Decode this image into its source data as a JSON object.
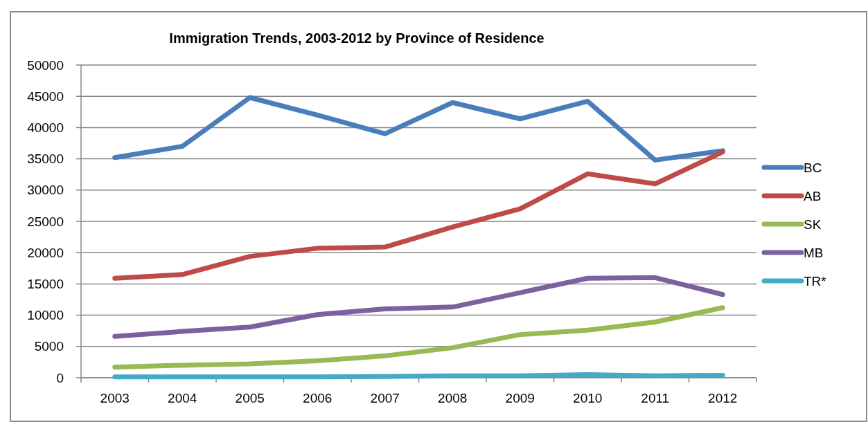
{
  "chart_data": {
    "type": "line",
    "title": "Immigration Trends, 2003-2012 by Province of Residence",
    "categories": [
      "2003",
      "2004",
      "2005",
      "2006",
      "2007",
      "2008",
      "2009",
      "2010",
      "2011",
      "2012"
    ],
    "series": [
      {
        "name": "BC",
        "color": "#4a7ebb",
        "values": [
          35200,
          37000,
          44800,
          42000,
          39000,
          44000,
          41400,
          44200,
          34800,
          36300
        ]
      },
      {
        "name": "AB",
        "color": "#be4b48",
        "values": [
          15900,
          16500,
          19400,
          20700,
          20900,
          24100,
          27000,
          32600,
          31000,
          36100
        ]
      },
      {
        "name": "SK",
        "color": "#98b954",
        "values": [
          1700,
          2000,
          2200,
          2700,
          3500,
          4800,
          6900,
          7600,
          8900,
          11200
        ]
      },
      {
        "name": "MB",
        "color": "#7d60a0",
        "values": [
          6600,
          7400,
          8100,
          10100,
          11000,
          11300,
          13600,
          15900,
          16000,
          13300
        ]
      },
      {
        "name": "TR*",
        "color": "#46aac5",
        "values": [
          150,
          150,
          150,
          150,
          200,
          300,
          300,
          500,
          300,
          400
        ]
      }
    ],
    "ylim": [
      0,
      50000
    ],
    "yticks": [
      0,
      5000,
      10000,
      15000,
      20000,
      25000,
      30000,
      35000,
      40000,
      45000,
      50000
    ],
    "grid": "y",
    "legend": "right",
    "marker": "none",
    "line_style": "solid"
  }
}
